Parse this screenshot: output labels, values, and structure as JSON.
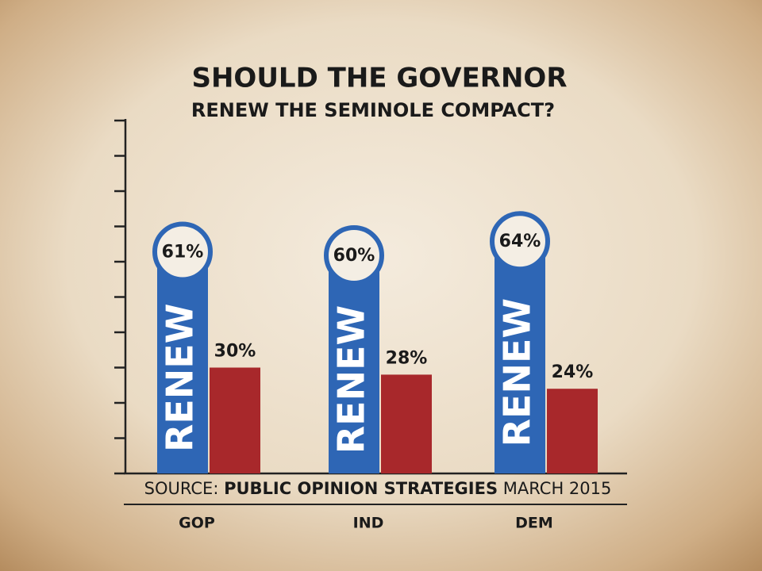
{
  "chart_data": {
    "type": "bar",
    "title": "SHOULD THE GOVERNOR",
    "subtitle": "RENEW THE SEMINOLE COMPACT?",
    "categories": [
      "GOP",
      "IND",
      "DEM"
    ],
    "series": [
      {
        "name": "RENEW",
        "color": "#2e66b5",
        "values": [
          61,
          60,
          64
        ],
        "value_labels": [
          "61%",
          "60%",
          "64%"
        ]
      },
      {
        "color": "#a8282b",
        "values": [
          30,
          28,
          24
        ],
        "value_labels": [
          "30%",
          "28%",
          "24%"
        ]
      }
    ],
    "ylim": [
      0,
      100
    ],
    "yticks": [
      0,
      10,
      20,
      30,
      40,
      50,
      60,
      70,
      80,
      90,
      100
    ],
    "source": {
      "prefix": "SOURCE:",
      "name": "PUBLIC OPINION STRATEGIES",
      "date": "MARCH 2015"
    }
  }
}
